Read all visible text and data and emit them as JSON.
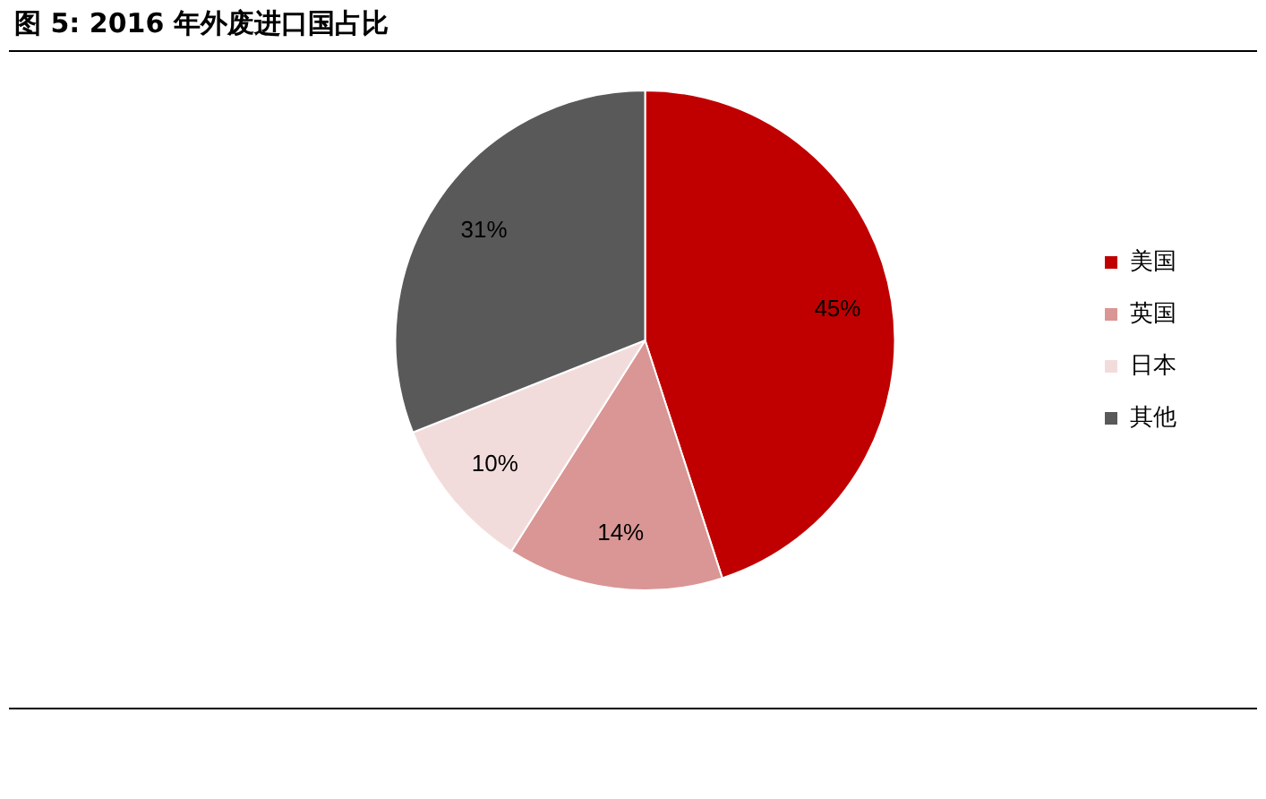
{
  "chart_data": {
    "type": "pie",
    "title": "图 5:  2016 年外废进口国占比",
    "categories": [
      "美国",
      "英国",
      "日本",
      "其他"
    ],
    "values": [
      45,
      14,
      10,
      31
    ],
    "colors": [
      "#c00000",
      "#d99694",
      "#f2dcdb",
      "#595959"
    ],
    "value_labels": [
      "45%",
      "14%",
      "10%",
      "31%"
    ],
    "legend": "right"
  }
}
